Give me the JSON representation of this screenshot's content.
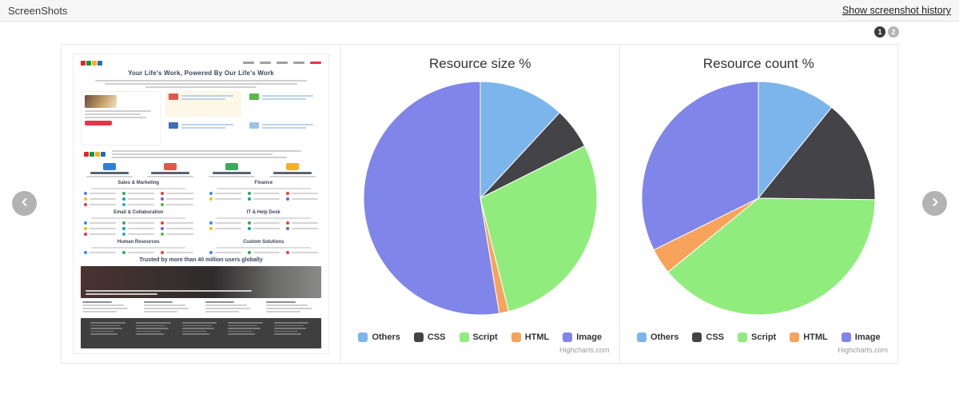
{
  "header": {
    "title": "ScreenShots",
    "history_link": "Show screenshot history"
  },
  "pagination": {
    "pages": [
      "1",
      "2"
    ],
    "active_page": "1"
  },
  "thumbnail": {
    "heading": "Your Life's Work, Powered By Our Life's Work",
    "trusted_line": "Trusted by more than 40 million users globally",
    "sections": [
      "Sales & Marketing",
      "Finance",
      "Email & Collaboration",
      "IT & Help Desk",
      "Human Resources",
      "Custom Solutions"
    ]
  },
  "chart_data": [
    {
      "type": "pie",
      "title": "Resource size %",
      "labels": [
        "Others",
        "CSS",
        "Script",
        "HTML",
        "Image"
      ],
      "values": [
        11.9,
        5.7,
        28.5,
        1.3,
        52.6
      ],
      "colors": [
        "#7cb5ec",
        "#434348",
        "#90ed7d",
        "#f7a35c",
        "#8085e9"
      ],
      "legend_position": "bottom",
      "credit": "Highcharts.com"
    },
    {
      "type": "pie",
      "title": "Resource count %",
      "labels": [
        "Others",
        "CSS",
        "Script",
        "HTML",
        "Image"
      ],
      "values": [
        10.8,
        14.4,
        38.9,
        3.6,
        32.3
      ],
      "colors": [
        "#7cb5ec",
        "#434348",
        "#90ed7d",
        "#f7a35c",
        "#8085e9"
      ],
      "legend_position": "bottom",
      "credit": "Highcharts.com"
    }
  ]
}
